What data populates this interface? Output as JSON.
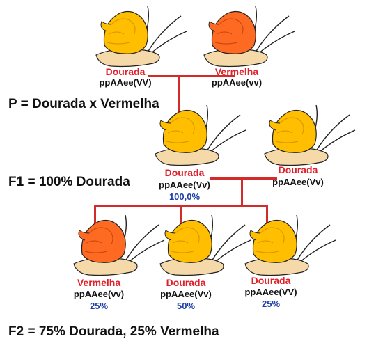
{
  "colors": {
    "golden_shell": "#ffbf00",
    "red_shell": "#ff6a22",
    "line": "#d32a2a",
    "name_text": "#e0202a",
    "percent_text": "#1f3fa8"
  },
  "parents": {
    "generation_label": "P = Dourada x Vermelha",
    "left": {
      "name": "Dourada",
      "genotype": "ppAAee(VV)",
      "shell": "golden"
    },
    "right": {
      "name": "Vermelha",
      "genotype": "ppAAee(vv)",
      "shell": "red"
    }
  },
  "f1": {
    "generation_label": "F1 = 100% Dourada",
    "left": {
      "name": "Dourada",
      "genotype": "ppAAee(Vv)",
      "percent": "100,0%",
      "shell": "golden"
    },
    "right": {
      "name": "Dourada",
      "genotype": "ppAAee(Vv)",
      "shell": "golden"
    }
  },
  "f2": {
    "generation_label": "F2 = 75% Dourada, 25% Vermelha",
    "offspring": [
      {
        "name": "Vermelha",
        "genotype": "ppAAee(vv)",
        "percent": "25%",
        "shell": "red"
      },
      {
        "name": "Dourada",
        "genotype": "ppAAee(Vv)",
        "percent": "50%",
        "shell": "golden"
      },
      {
        "name": "Dourada",
        "genotype": "ppAAee(VV)",
        "percent": "25%",
        "shell": "golden"
      }
    ]
  }
}
